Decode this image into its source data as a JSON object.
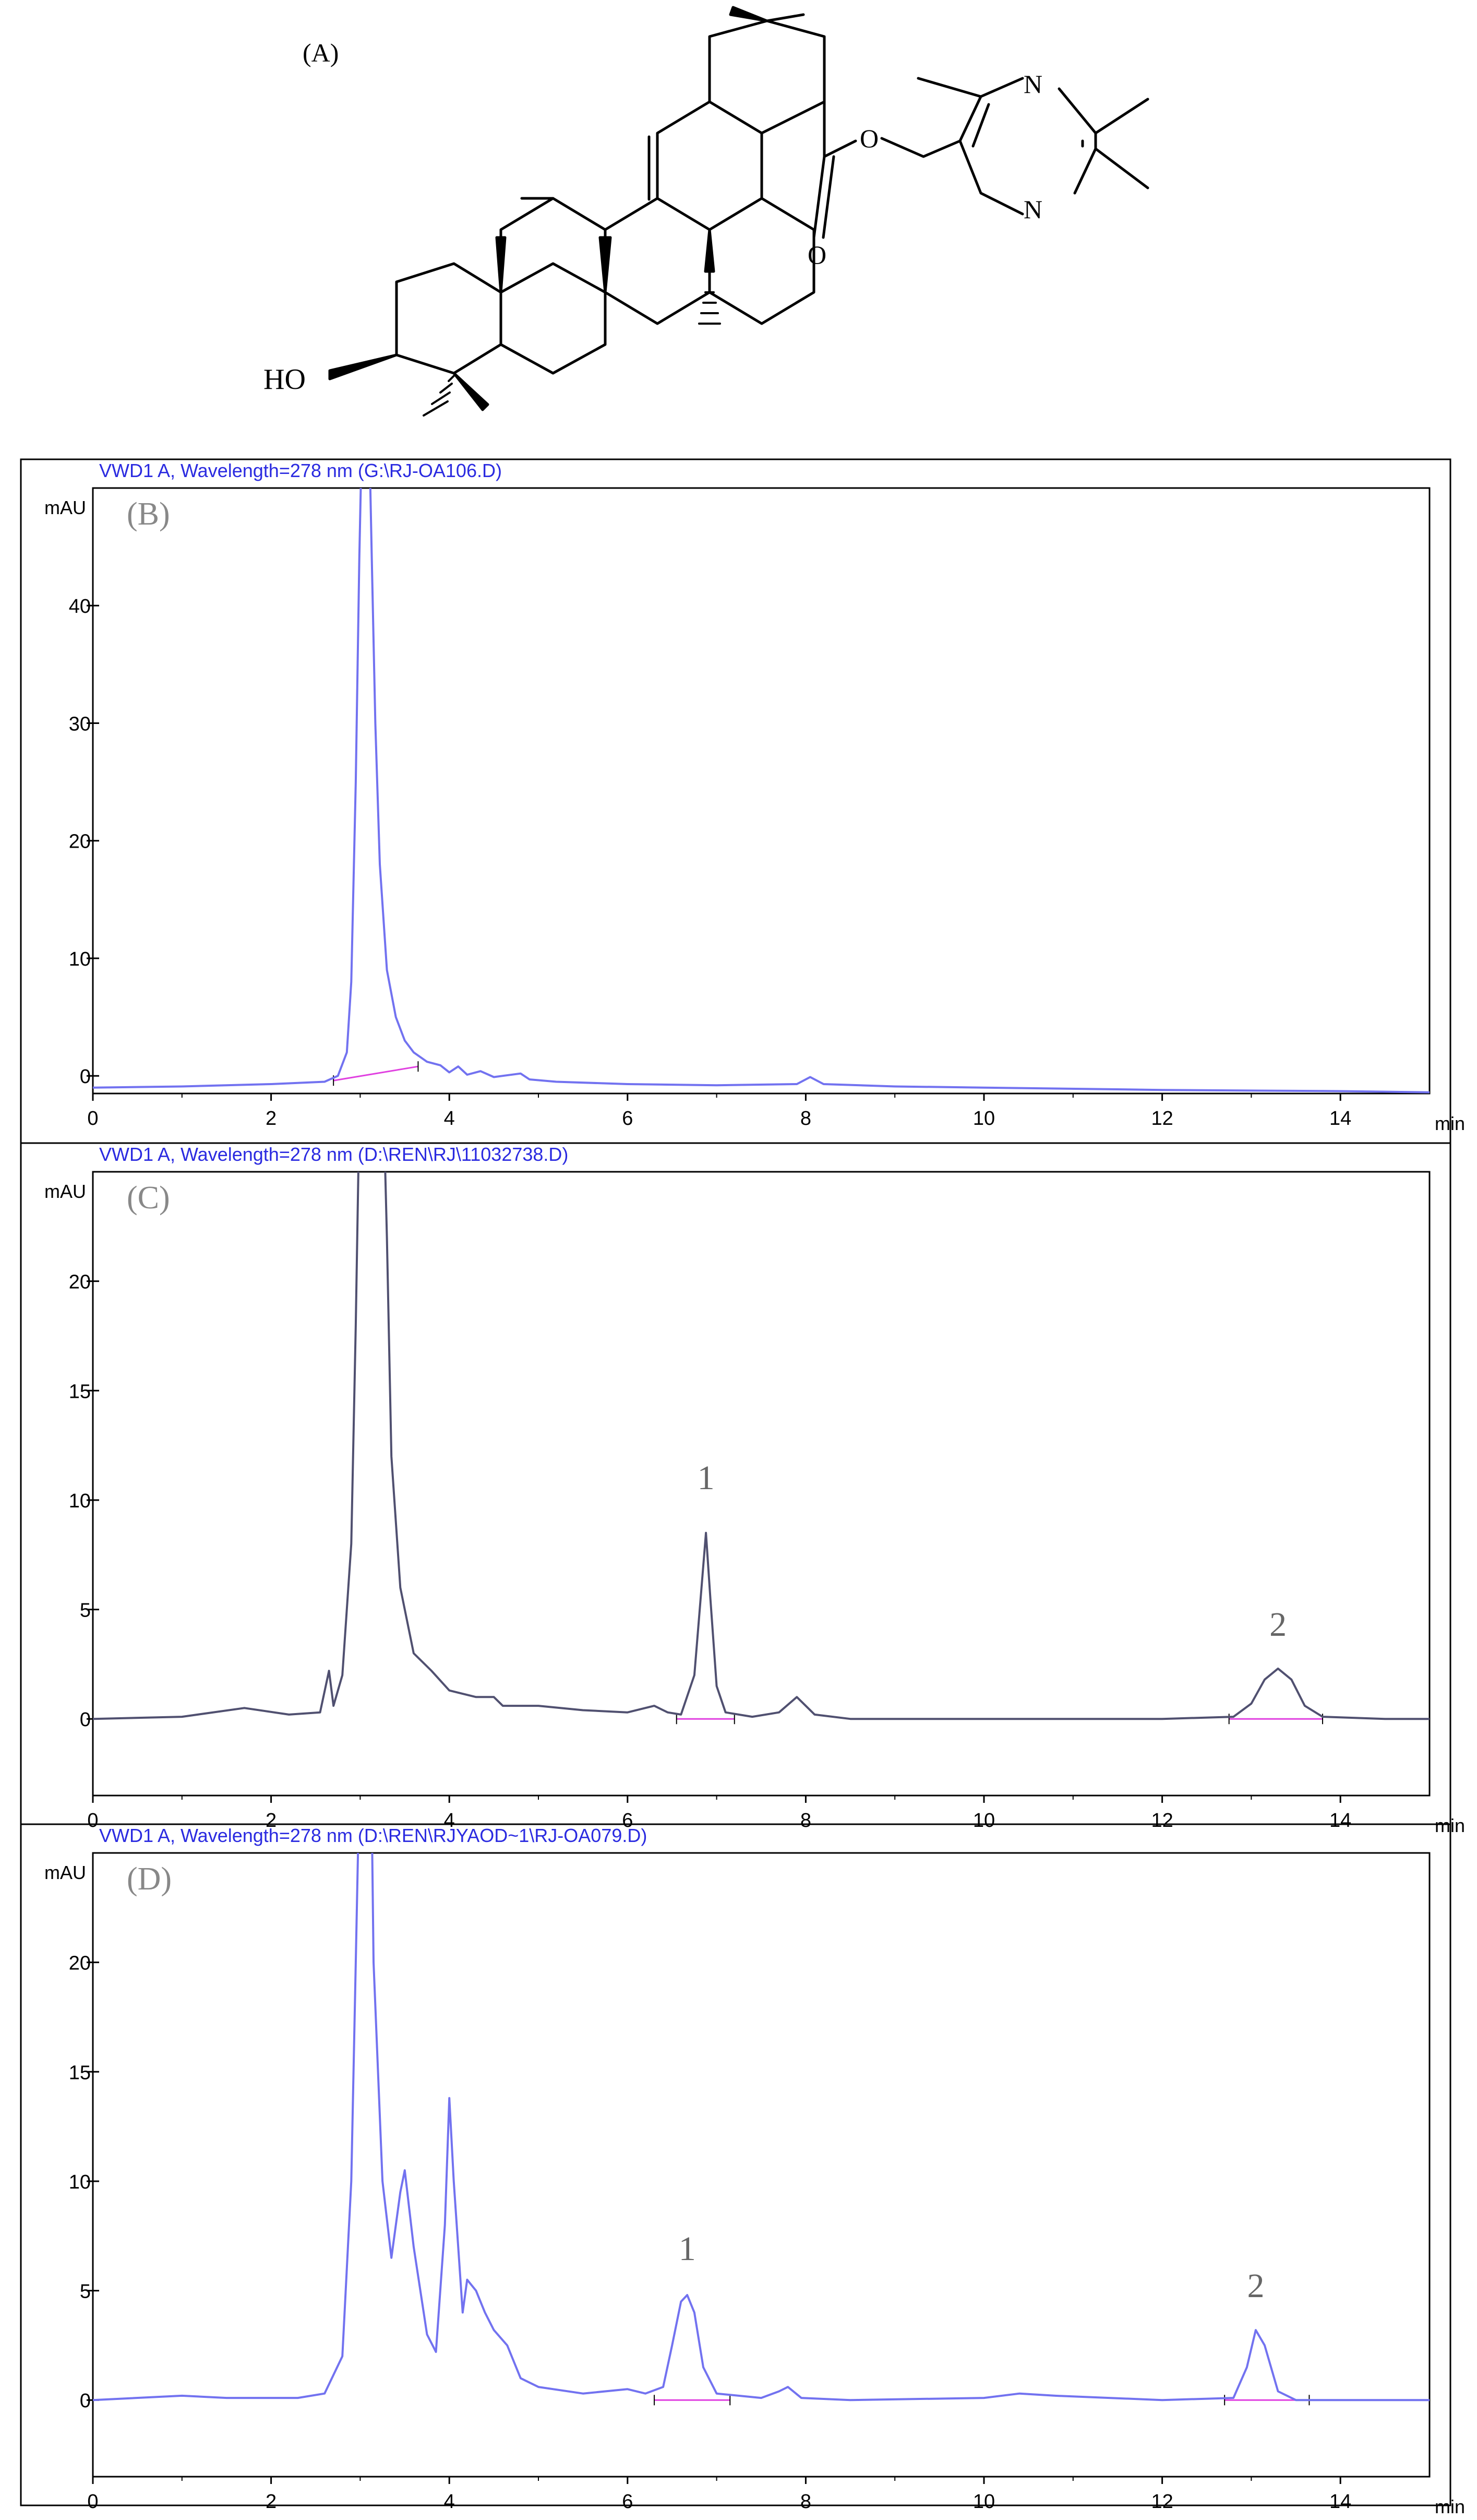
{
  "structure": {
    "label": "(A)",
    "atoms": {
      "hydroxyl": "HO",
      "ester_oxygen": "O",
      "carbonyl_oxygen": "O",
      "nitrogen_top": "N",
      "nitrogen_bottom": "N"
    }
  },
  "colors": {
    "trace_blue": "#7272f0",
    "trace_dark": "#505070",
    "baseline": "#e040e0",
    "header_text": "#2a2ae0",
    "axis": "#000000"
  },
  "chart_data": [
    {
      "type": "line",
      "panel": "(B)",
      "header": "VWD1 A, Wavelength=278 nm (G:\\RJ-OA106.D)",
      "ylabel": "mAU",
      "xlabel": "min",
      "xlim": [
        0,
        15
      ],
      "ylim": [
        -1.5,
        50
      ],
      "x_ticks": [
        "0",
        "2",
        "4",
        "6",
        "8",
        "10",
        "12",
        "14"
      ],
      "y_ticks": [
        "0",
        "10",
        "20",
        "30",
        "40"
      ],
      "grid": false,
      "series": [
        {
          "points": [
            [
              0,
              -1.0
            ],
            [
              1,
              -0.9
            ],
            [
              2,
              -0.7
            ],
            [
              2.6,
              -0.5
            ],
            [
              2.75,
              0.0
            ],
            [
              2.85,
              2
            ],
            [
              2.9,
              8
            ],
            [
              2.95,
              25
            ],
            [
              2.99,
              44
            ],
            [
              3.02,
              55
            ],
            [
              3.1,
              55
            ],
            [
              3.13,
              44
            ],
            [
              3.17,
              30
            ],
            [
              3.22,
              18
            ],
            [
              3.3,
              9
            ],
            [
              3.4,
              5
            ],
            [
              3.5,
              3
            ],
            [
              3.6,
              2
            ],
            [
              3.75,
              1.2
            ],
            [
              3.9,
              0.9
            ],
            [
              4.0,
              0.3
            ],
            [
              4.1,
              0.8
            ],
            [
              4.2,
              0.1
            ],
            [
              4.35,
              0.4
            ],
            [
              4.5,
              -0.1
            ],
            [
              4.6,
              0.0
            ],
            [
              4.8,
              0.2
            ],
            [
              4.9,
              -0.3
            ],
            [
              5.2,
              -0.5
            ],
            [
              6,
              -0.7
            ],
            [
              7,
              -0.8
            ],
            [
              7.9,
              -0.7
            ],
            [
              8.05,
              -0.1
            ],
            [
              8.2,
              -0.7
            ],
            [
              9,
              -0.9
            ],
            [
              10,
              -1.0
            ],
            [
              12,
              -1.2
            ],
            [
              14,
              -1.3
            ],
            [
              15,
              -1.4
            ]
          ]
        }
      ],
      "baselines": [
        {
          "x": [
            2.7,
            3.65
          ],
          "y": [
            -0.4,
            0.8
          ]
        }
      ],
      "peak_labels": []
    },
    {
      "type": "line",
      "panel": "(C)",
      "header": "VWD1 A, Wavelength=278 nm (D:\\REN\\RJ\\11032738.D)",
      "ylabel": "mAU",
      "xlabel": "min",
      "xlim": [
        0,
        15
      ],
      "ylim": [
        -3.5,
        25
      ],
      "x_ticks": [
        "0",
        "2",
        "4",
        "6",
        "8",
        "10",
        "12",
        "14"
      ],
      "y_ticks": [
        "0",
        "5",
        "10",
        "15",
        "20"
      ],
      "grid": false,
      "series": [
        {
          "points": [
            [
              0,
              0
            ],
            [
              1,
              0.1
            ],
            [
              1.7,
              0.5
            ],
            [
              2.2,
              0.2
            ],
            [
              2.55,
              0.3
            ],
            [
              2.65,
              2.2
            ],
            [
              2.7,
              0.6
            ],
            [
              2.8,
              2
            ],
            [
              2.9,
              8
            ],
            [
              2.95,
              18
            ],
            [
              3.0,
              30
            ],
            [
              3.25,
              30
            ],
            [
              3.3,
              22
            ],
            [
              3.35,
              12
            ],
            [
              3.45,
              6
            ],
            [
              3.6,
              3
            ],
            [
              3.8,
              2.2
            ],
            [
              4.0,
              1.3
            ],
            [
              4.3,
              1.0
            ],
            [
              4.5,
              1.0
            ],
            [
              4.6,
              0.6
            ],
            [
              4.8,
              0.6
            ],
            [
              5.0,
              0.6
            ],
            [
              5.5,
              0.4
            ],
            [
              6.0,
              0.3
            ],
            [
              6.3,
              0.6
            ],
            [
              6.45,
              0.3
            ],
            [
              6.6,
              0.2
            ],
            [
              6.75,
              2
            ],
            [
              6.82,
              5.5
            ],
            [
              6.88,
              8.5
            ],
            [
              6.93,
              5.5
            ],
            [
              7.0,
              1.5
            ],
            [
              7.1,
              0.3
            ],
            [
              7.4,
              0.1
            ],
            [
              7.7,
              0.3
            ],
            [
              7.9,
              1.0
            ],
            [
              8.1,
              0.2
            ],
            [
              8.5,
              0.0
            ],
            [
              9,
              0.0
            ],
            [
              10,
              0.0
            ],
            [
              12,
              0.0
            ],
            [
              12.8,
              0.1
            ],
            [
              13.0,
              0.7
            ],
            [
              13.15,
              1.8
            ],
            [
              13.3,
              2.3
            ],
            [
              13.45,
              1.8
            ],
            [
              13.6,
              0.6
            ],
            [
              13.8,
              0.1
            ],
            [
              14.5,
              0.0
            ],
            [
              15,
              0.0
            ]
          ]
        }
      ],
      "baselines": [
        {
          "x": [
            6.55,
            7.2
          ],
          "y": [
            0,
            0
          ]
        },
        {
          "x": [
            12.75,
            13.8
          ],
          "y": [
            0,
            0
          ]
        }
      ],
      "peak_labels": [
        {
          "text": "1",
          "x": 6.88,
          "y": 10.5
        },
        {
          "text": "2",
          "x": 13.3,
          "y": 3.8
        }
      ]
    },
    {
      "type": "line",
      "panel": "(D)",
      "header": "VWD1 A, Wavelength=278 nm (D:\\REN\\RJYAOD~1\\RJ-OA079.D)",
      "ylabel": "mAU",
      "xlabel": "min",
      "xlim": [
        0,
        15
      ],
      "ylim": [
        -3.5,
        25
      ],
      "x_ticks": [
        "0",
        "2",
        "4",
        "6",
        "8",
        "10",
        "12",
        "14"
      ],
      "y_ticks": [
        "0",
        "5",
        "10",
        "15",
        "20"
      ],
      "grid": false,
      "series": [
        {
          "points": [
            [
              0,
              0
            ],
            [
              1,
              0.2
            ],
            [
              1.5,
              0.1
            ],
            [
              2.3,
              0.1
            ],
            [
              2.6,
              0.3
            ],
            [
              2.8,
              2
            ],
            [
              2.9,
              10
            ],
            [
              2.95,
              20
            ],
            [
              3.0,
              30
            ],
            [
              3.12,
              30
            ],
            [
              3.15,
              20
            ],
            [
              3.25,
              10
            ],
            [
              3.35,
              6.5
            ],
            [
              3.45,
              9.5
            ],
            [
              3.5,
              10.5
            ],
            [
              3.6,
              7
            ],
            [
              3.75,
              3
            ],
            [
              3.85,
              2.2
            ],
            [
              3.95,
              8
            ],
            [
              4.0,
              13.8
            ],
            [
              4.05,
              10
            ],
            [
              4.15,
              4
            ],
            [
              4.2,
              5.5
            ],
            [
              4.3,
              5.0
            ],
            [
              4.4,
              4.0
            ],
            [
              4.5,
              3.2
            ],
            [
              4.65,
              2.5
            ],
            [
              4.8,
              1.0
            ],
            [
              5.0,
              0.6
            ],
            [
              5.5,
              0.3
            ],
            [
              6.0,
              0.5
            ],
            [
              6.2,
              0.3
            ],
            [
              6.4,
              0.6
            ],
            [
              6.5,
              2.5
            ],
            [
              6.6,
              4.5
            ],
            [
              6.67,
              4.8
            ],
            [
              6.75,
              4.0
            ],
            [
              6.85,
              1.5
            ],
            [
              7.0,
              0.3
            ],
            [
              7.5,
              0.1
            ],
            [
              7.7,
              0.4
            ],
            [
              7.8,
              0.6
            ],
            [
              7.95,
              0.1
            ],
            [
              8.5,
              0.0
            ],
            [
              10,
              0.1
            ],
            [
              10.4,
              0.3
            ],
            [
              10.8,
              0.2
            ],
            [
              12,
              0.0
            ],
            [
              12.8,
              0.1
            ],
            [
              12.95,
              1.5
            ],
            [
              13.05,
              3.2
            ],
            [
              13.15,
              2.5
            ],
            [
              13.3,
              0.4
            ],
            [
              13.5,
              0.0
            ],
            [
              15,
              0.0
            ]
          ]
        }
      ],
      "baselines": [
        {
          "x": [
            6.3,
            7.15
          ],
          "y": [
            0,
            0
          ]
        },
        {
          "x": [
            12.7,
            13.65
          ],
          "y": [
            0,
            0
          ]
        }
      ],
      "peak_labels": [
        {
          "text": "1",
          "x": 6.67,
          "y": 6.4
        },
        {
          "text": "2",
          "x": 13.05,
          "y": 4.7
        }
      ]
    }
  ]
}
